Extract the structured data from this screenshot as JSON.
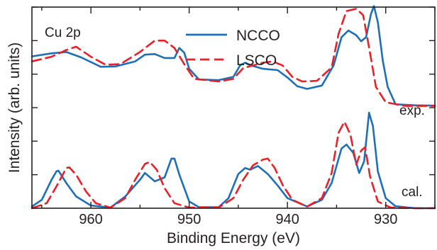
{
  "chart_data": {
    "type": "line",
    "title": "",
    "xlabel": "Binding Energy (eV)",
    "ylabel": "Intensity (arb. units)",
    "x_reversed": true,
    "xlim": [
      966,
      925
    ],
    "xticks": [
      960,
      950,
      940,
      930
    ],
    "xtick_labels": [
      "960",
      "950",
      "940",
      "930"
    ],
    "ylim": [
      0,
      6
    ],
    "y_tick_labels_shown": false,
    "grid": false,
    "legend": "top-center",
    "annotations": {
      "panel_label": "Cu 2p",
      "experiment_label": "exp.",
      "calculation_label": "cal."
    },
    "colors": {
      "NCCO": "#1f6fb5",
      "LSCO": "#e8202a",
      "axis": "#231f20"
    },
    "series": [
      {
        "name": "NCCO",
        "group": "exp.",
        "line_style": "solid",
        "points": [
          [
            966,
            4.53
          ],
          [
            964,
            4.62
          ],
          [
            962.5,
            4.66
          ],
          [
            961,
            4.5
          ],
          [
            959,
            4.22
          ],
          [
            957.5,
            4.23
          ],
          [
            955.5,
            4.38
          ],
          [
            954.5,
            4.58
          ],
          [
            953.5,
            4.6
          ],
          [
            952.5,
            4.48
          ],
          [
            951.5,
            4.48
          ],
          [
            951,
            4.78
          ],
          [
            950.5,
            4.64
          ],
          [
            950,
            4.16
          ],
          [
            949,
            3.84
          ],
          [
            947,
            3.82
          ],
          [
            945.5,
            3.92
          ],
          [
            944.8,
            4.27
          ],
          [
            944.3,
            4.34
          ],
          [
            943.5,
            4.24
          ],
          [
            942.5,
            4.16
          ],
          [
            941,
            4.12
          ],
          [
            940,
            3.9
          ],
          [
            939,
            3.64
          ],
          [
            938,
            3.56
          ],
          [
            936.5,
            3.66
          ],
          [
            935.3,
            4.26
          ],
          [
            934.5,
            5.1
          ],
          [
            933.8,
            5.3
          ],
          [
            933,
            5.16
          ],
          [
            932.5,
            4.98
          ],
          [
            932,
            5.1
          ],
          [
            931.5,
            5.8
          ],
          [
            931.2,
            6.03
          ],
          [
            930.8,
            5.55
          ],
          [
            930.3,
            4.4
          ],
          [
            929.8,
            3.62
          ],
          [
            929,
            3.1
          ],
          [
            927,
            3.07
          ],
          [
            925,
            3.06
          ]
        ]
      },
      {
        "name": "LSCO",
        "group": "exp.",
        "line_style": "dashed",
        "points": [
          [
            966,
            4.38
          ],
          [
            964,
            4.52
          ],
          [
            962.5,
            4.72
          ],
          [
            961.5,
            4.82
          ],
          [
            960,
            4.52
          ],
          [
            958.5,
            4.28
          ],
          [
            957,
            4.3
          ],
          [
            955,
            4.66
          ],
          [
            953.5,
            5.0
          ],
          [
            952.5,
            5.0
          ],
          [
            951.5,
            4.78
          ],
          [
            950.5,
            4.3
          ],
          [
            949.5,
            3.86
          ],
          [
            947,
            3.78
          ],
          [
            945.5,
            3.86
          ],
          [
            944.5,
            4.18
          ],
          [
            943.5,
            4.26
          ],
          [
            942.5,
            4.34
          ],
          [
            941.5,
            4.38
          ],
          [
            940.5,
            4.26
          ],
          [
            939.5,
            3.92
          ],
          [
            938.5,
            3.78
          ],
          [
            937,
            3.8
          ],
          [
            935.5,
            4.2
          ],
          [
            934.8,
            5.2
          ],
          [
            934,
            5.88
          ],
          [
            933,
            5.95
          ],
          [
            932.3,
            5.76
          ],
          [
            931.7,
            4.8
          ],
          [
            931,
            3.62
          ],
          [
            930,
            3.16
          ],
          [
            928,
            3.05
          ],
          [
            925,
            3.05
          ]
        ]
      },
      {
        "name": "NCCO",
        "group": "cal.",
        "line_style": "solid",
        "points": [
          [
            966,
            0.05
          ],
          [
            965,
            0.25
          ],
          [
            964,
            0.85
          ],
          [
            963.5,
            1.1
          ],
          [
            963.3,
            1.12
          ],
          [
            962.5,
            0.75
          ],
          [
            961.5,
            0.35
          ],
          [
            960,
            0.08
          ],
          [
            958,
            0.02
          ],
          [
            956.5,
            0.35
          ],
          [
            955,
            0.85
          ],
          [
            954.5,
            1.05
          ],
          [
            953.5,
            0.8
          ],
          [
            952.5,
            0.92
          ],
          [
            951.8,
            1.48
          ],
          [
            951.5,
            1.48
          ],
          [
            951,
            1.0
          ],
          [
            950,
            0.2
          ],
          [
            949,
            0.03
          ],
          [
            947,
            0.03
          ],
          [
            946,
            0.3
          ],
          [
            945,
            1.02
          ],
          [
            944.3,
            1.2
          ],
          [
            943.8,
            1.15
          ],
          [
            943,
            1.26
          ],
          [
            942,
            1.02
          ],
          [
            941,
            0.68
          ],
          [
            940,
            0.3
          ],
          [
            938,
            0.05
          ],
          [
            936.5,
            0.25
          ],
          [
            935.5,
            0.75
          ],
          [
            934.5,
            1.78
          ],
          [
            934,
            1.9
          ],
          [
            933.3,
            1.65
          ],
          [
            932.7,
            1.05
          ],
          [
            932.2,
            1.4
          ],
          [
            931.7,
            2.85
          ],
          [
            931.3,
            2.45
          ],
          [
            930.8,
            1.1
          ],
          [
            930,
            0.3
          ],
          [
            929,
            0.06
          ],
          [
            927,
            0.0
          ],
          [
            925,
            0.0
          ]
        ]
      },
      {
        "name": "LSCO",
        "group": "cal.",
        "line_style": "dashed",
        "points": [
          [
            966,
            0.0
          ],
          [
            964.5,
            0.15
          ],
          [
            963.5,
            0.65
          ],
          [
            962.5,
            1.2
          ],
          [
            962.2,
            1.22
          ],
          [
            961.5,
            1.0
          ],
          [
            960.5,
            0.5
          ],
          [
            959.5,
            0.15
          ],
          [
            958,
            0.02
          ],
          [
            956.5,
            0.3
          ],
          [
            955.5,
            0.85
          ],
          [
            954.5,
            1.32
          ],
          [
            954,
            1.38
          ],
          [
            953.3,
            1.15
          ],
          [
            952.5,
            0.6
          ],
          [
            951.5,
            0.15
          ],
          [
            950,
            0.02
          ],
          [
            947,
            0.02
          ],
          [
            945.5,
            0.3
          ],
          [
            944.5,
            0.85
          ],
          [
            943.5,
            1.28
          ],
          [
            942.5,
            1.45
          ],
          [
            942,
            1.48
          ],
          [
            941.3,
            1.2
          ],
          [
            940.5,
            0.7
          ],
          [
            939.5,
            0.25
          ],
          [
            938,
            0.05
          ],
          [
            936.5,
            0.3
          ],
          [
            935.5,
            1.05
          ],
          [
            934.8,
            2.25
          ],
          [
            934.2,
            2.58
          ],
          [
            933.6,
            2.2
          ],
          [
            933,
            1.3
          ],
          [
            932.5,
            1.72
          ],
          [
            932.1,
            1.82
          ],
          [
            931.6,
            0.95
          ],
          [
            930.8,
            0.2
          ],
          [
            929.5,
            0.02
          ],
          [
            927,
            0.0
          ],
          [
            925,
            0.0
          ]
        ]
      }
    ]
  },
  "legend": {
    "items": [
      {
        "label": "NCCO",
        "color": "#1f6fb5",
        "dash": ""
      },
      {
        "label": "LSCO",
        "color": "#e8202a",
        "dash": "13 7"
      }
    ]
  }
}
